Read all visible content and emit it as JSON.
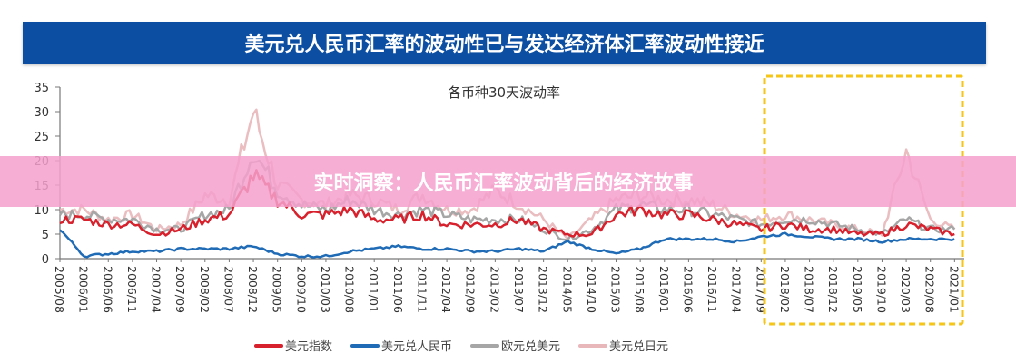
{
  "header": {
    "title": "美元兑人民币汇率的波动性已与发达经济体汇率波动性接近"
  },
  "banner": {
    "text": "实时洞察：人民币汇率波动背后的经济故事"
  },
  "colors": {
    "header_bg": "#0b4ea2",
    "usd_index": "#d7212d",
    "usd_cny": "#1f6bb5",
    "eur_usd": "#a6a6a6",
    "usd_jpy": "#e8b7ba",
    "highlight_box": "#f5c518",
    "banner": "#f5a0cd"
  },
  "legend": [
    {
      "label": "美元指数",
      "color": "#d7212d"
    },
    {
      "label": "美元兑人民币",
      "color": "#1f6bb5"
    },
    {
      "label": "欧元兑美元",
      "color": "#a6a6a6"
    },
    {
      "label": "美元兑日元",
      "color": "#e8b7ba"
    }
  ],
  "chart_data": {
    "type": "line",
    "title": "各币种30天波动率",
    "xlabel": "",
    "ylabel": "",
    "ylim": [
      0,
      35
    ],
    "yticks": [
      0,
      5,
      10,
      15,
      20,
      25,
      30,
      35
    ],
    "grid": false,
    "legend_position": "bottom",
    "categories": [
      "2005/08",
      "2006/01",
      "2006/06",
      "2006/11",
      "2007/04",
      "2007/09",
      "2008/02",
      "2008/07",
      "2008/12",
      "2009/05",
      "2009/10",
      "2010/03",
      "2010/08",
      "2011/01",
      "2011/06",
      "2011/11",
      "2012/04",
      "2012/09",
      "2013/02",
      "2013/07",
      "2013/12",
      "2014/05",
      "2014/10",
      "2015/03",
      "2015/08",
      "2016/01",
      "2016/06",
      "2016/11",
      "2017/04",
      "2017/09",
      "2018/02",
      "2018/07",
      "2018/12",
      "2019/05",
      "2019/10",
      "2020/03",
      "2020/08",
      "2021/01"
    ],
    "series": [
      {
        "name": "美元指数",
        "values": [
          8,
          8,
          7,
          7,
          5,
          6,
          8,
          9,
          17,
          12,
          9,
          9,
          10,
          8,
          8,
          9,
          7,
          7,
          7,
          8,
          6,
          5,
          5,
          9,
          10,
          9,
          9,
          8,
          7,
          6,
          7,
          6,
          6,
          5,
          5,
          7,
          6,
          5
        ]
      },
      {
        "name": "美元兑人民币",
        "values": [
          6,
          0.5,
          1,
          1.5,
          1.5,
          2,
          2,
          2,
          2.5,
          1,
          0.5,
          0.5,
          1.5,
          2,
          2.5,
          2,
          2,
          1.5,
          1.5,
          2,
          1.5,
          3.5,
          2,
          1,
          2,
          4,
          4,
          4,
          3.5,
          4.5,
          5,
          4.5,
          4,
          4,
          3.5,
          4,
          4,
          4
        ]
      },
      {
        "name": "欧元兑美元",
        "values": [
          9,
          9,
          8,
          8,
          6,
          6,
          9,
          10,
          22,
          14,
          11,
          10,
          12,
          10,
          9,
          10,
          9,
          8,
          8,
          8,
          6,
          4,
          6,
          10,
          11,
          10,
          10,
          9,
          8,
          7,
          8,
          8,
          7,
          6,
          5,
          8,
          6,
          6
        ]
      },
      {
        "name": "美元兑日元",
        "values": [
          10,
          10,
          8,
          9,
          6,
          7,
          13,
          12,
          30,
          15,
          12,
          11,
          13,
          12,
          10,
          13,
          10,
          10,
          14,
          11,
          8,
          4,
          8,
          12,
          13,
          12,
          12,
          11,
          9,
          8,
          9,
          8,
          7,
          6,
          5,
          22,
          8,
          6
        ]
      }
    ],
    "annotations": [
      {
        "type": "dashed-box",
        "x_range": [
          "2017/11",
          "2021/06"
        ],
        "color": "#f5c518"
      }
    ]
  }
}
